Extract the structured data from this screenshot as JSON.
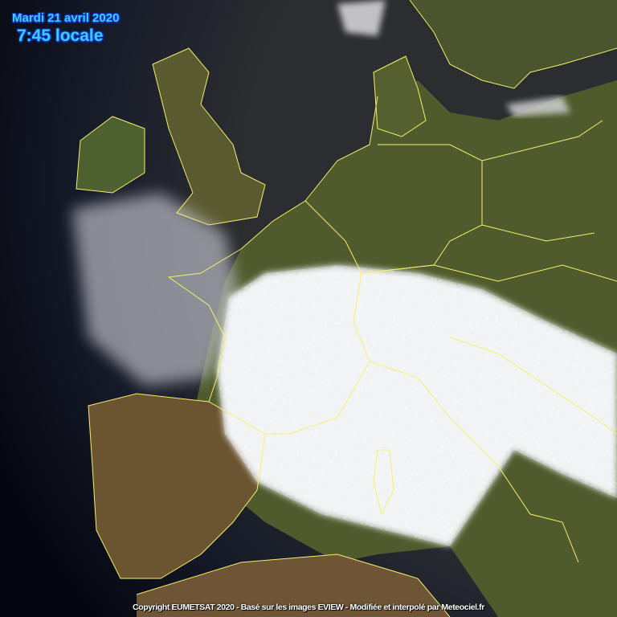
{
  "overlay": {
    "date": "Mardi 21 avril 2020",
    "time": "7:45 locale",
    "copyright": "Copyright EUMETSAT 2020 - Basé sur les images EVIEW - Modifiée et interpolé par Meteociel.fr"
  },
  "map": {
    "type": "satellite-visible-composite",
    "colors": {
      "space": "#0a0f1e",
      "sea": "#2a2b2e",
      "land": "#4d5a2c",
      "arid_land": "#6b5430",
      "cloud": "#f2f3f5",
      "borders": "#f5f06a",
      "title_text": "#3cd0ff",
      "title_outline": "#1030c0"
    }
  }
}
